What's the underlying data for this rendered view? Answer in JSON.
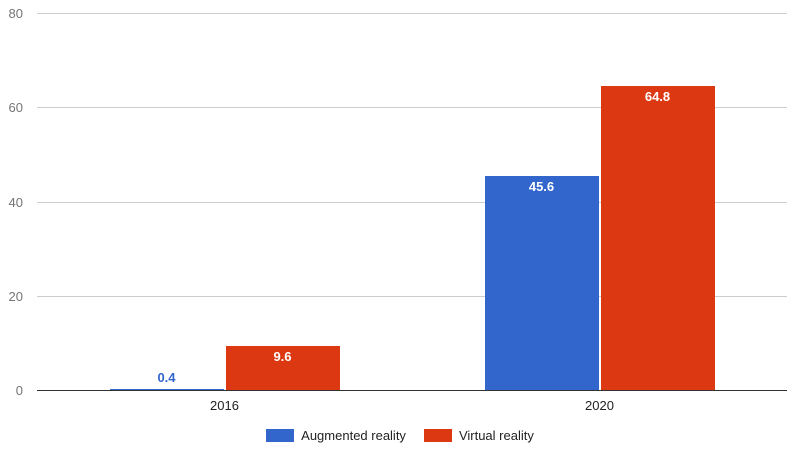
{
  "chart_data": {
    "type": "bar",
    "title": "",
    "xlabel": "",
    "ylabel": "",
    "categories": [
      "2016",
      "2020"
    ],
    "series": [
      {
        "name": "Augmented reality",
        "color": "#3366CC",
        "values": [
          0.4,
          45.6
        ]
      },
      {
        "name": "Virtual reality",
        "color": "#DC3912",
        "values": [
          9.6,
          64.8
        ]
      }
    ],
    "ylim": [
      0,
      80
    ],
    "yticks": [
      0,
      20,
      40,
      60,
      80
    ],
    "grid": true,
    "legend_position": "bottom"
  },
  "colors": {
    "gridline": "#cccccc",
    "baseline": "#333333",
    "y_axis_label": "#757575",
    "x_axis_label": "#222222",
    "legend_text": "#222222",
    "annotation_inside": "#ffffff"
  }
}
